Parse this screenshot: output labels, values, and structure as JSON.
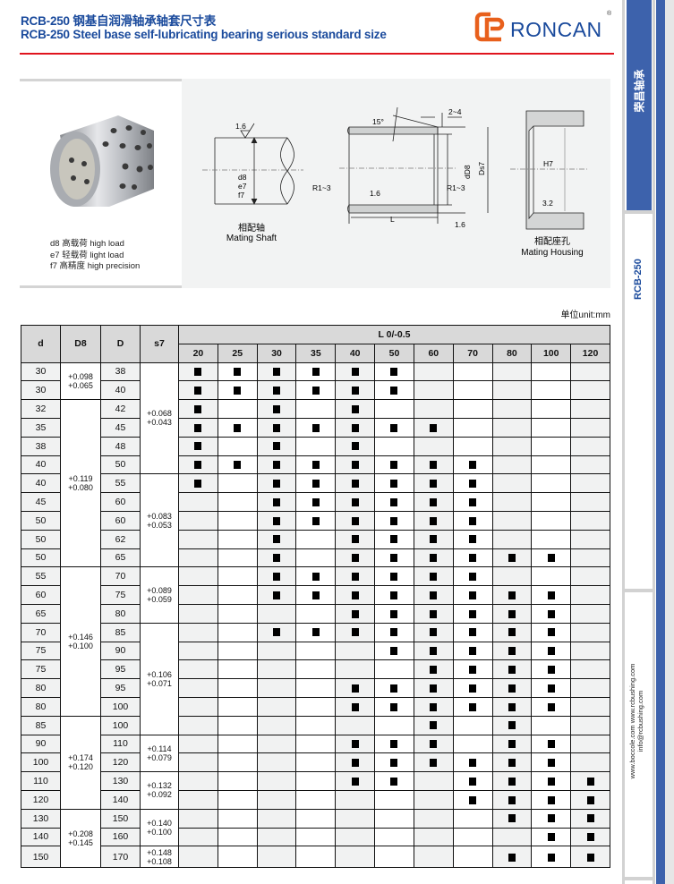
{
  "header": {
    "title_cn": "RCB-250 钢基自润滑轴承轴套尺寸表",
    "title_en": "RCB-250 Steel base self-lubricating bearing serious standard size",
    "logo_text": "RONCAN",
    "logo_reg": "®",
    "logo_color": "#e8601c",
    "brand_color": "#1a4a9c",
    "rule_color": "#e0141e"
  },
  "legend": [
    "d8  高载荷  high load",
    "e7  轻载荷  light load",
    "f7   高精度  high precision"
  ],
  "diagrams": {
    "shaft": {
      "rough": "1.6",
      "fits": [
        "d8",
        "e7",
        "f7"
      ],
      "label_cn": "相配轴",
      "label_en": "Mating Shaft"
    },
    "bushing": {
      "angle": "15°",
      "chamfer": "2~4",
      "radius_left": "R1~3",
      "radius_right": "R1~3",
      "rough_in": "1.6",
      "rough_out": "1.6",
      "length": "L",
      "inner": "dD8",
      "outer": "Ds7"
    },
    "housing": {
      "fit": "H7",
      "rough": "3.2",
      "label_cn": "相配座孔",
      "label_en": "Mating Housing"
    }
  },
  "unit": "单位unit:mm",
  "sidebar": {
    "brand_cn": "荣昌轴承",
    "model": "RCB-250",
    "web1": "www.boccole.com    www.rcbushing.com",
    "web2": "info@rcbushing.com"
  },
  "table": {
    "headers": {
      "d": "d",
      "D8": "D8",
      "D": "D",
      "s7": "s7",
      "L": "L 0/-0.5"
    },
    "lengths": [
      "20",
      "25",
      "30",
      "35",
      "40",
      "50",
      "60",
      "70",
      "80",
      "100",
      "120"
    ],
    "D8_groups": [
      {
        "rows": 2,
        "v": [
          "+0.098",
          "+0.065"
        ]
      },
      {
        "rows": 9,
        "v": [
          "+0.119",
          "+0.080"
        ]
      },
      {
        "rows": 8,
        "v": [
          "+0.146",
          "+0.100"
        ]
      },
      {
        "rows": 5,
        "v": [
          "+0.174",
          "+0.120"
        ]
      },
      {
        "rows": 3,
        "v": [
          "+0.208",
          "+0.145"
        ]
      }
    ],
    "s7_groups": [
      {
        "rows": 6,
        "v": [
          "+0.068",
          "+0.043"
        ]
      },
      {
        "rows": 5,
        "v": [
          "+0.083",
          "+0.053"
        ]
      },
      {
        "rows": 3,
        "v": [
          "+0.089",
          "+0.059"
        ]
      },
      {
        "rows": 6,
        "v": [
          "+0.106",
          "+0.071"
        ]
      },
      {
        "rows": 2,
        "v": [
          "+0.114",
          "+0.079"
        ]
      },
      {
        "rows": 2,
        "v": [
          "+0.132",
          "+0.092"
        ]
      },
      {
        "rows": 2,
        "v": [
          "+0.140",
          "+0.100"
        ]
      },
      {
        "rows": 1,
        "v": [
          "+0.148",
          "+0.108"
        ]
      }
    ],
    "rows": [
      {
        "d": "30",
        "D": "38",
        "avail": "11111100000"
      },
      {
        "d": "30",
        "D": "40",
        "avail": "11111100000"
      },
      {
        "d": "32",
        "D": "42",
        "avail": "10101000000"
      },
      {
        "d": "35",
        "D": "45",
        "avail": "11111110000"
      },
      {
        "d": "38",
        "D": "48",
        "avail": "10101000000"
      },
      {
        "d": "40",
        "D": "50",
        "avail": "11111111000"
      },
      {
        "d": "40",
        "D": "55",
        "avail": "10111111000"
      },
      {
        "d": "45",
        "D": "60",
        "avail": "00111111000"
      },
      {
        "d": "50",
        "D": "60",
        "avail": "00111111000"
      },
      {
        "d": "50",
        "D": "62",
        "avail": "00101111000"
      },
      {
        "d": "50",
        "D": "65",
        "avail": "00101111110"
      },
      {
        "d": "55",
        "D": "70",
        "avail": "00111111000"
      },
      {
        "d": "60",
        "D": "75",
        "avail": "00111111110"
      },
      {
        "d": "65",
        "D": "80",
        "avail": "00001111110"
      },
      {
        "d": "70",
        "D": "85",
        "avail": "00111111110"
      },
      {
        "d": "75",
        "D": "90",
        "avail": "00000111110"
      },
      {
        "d": "75",
        "D": "95",
        "avail": "00000011110"
      },
      {
        "d": "80",
        "D": "95",
        "avail": "00001111110"
      },
      {
        "d": "80",
        "D": "100",
        "avail": "00001111110"
      },
      {
        "d": "85",
        "D": "100",
        "avail": "00000010100"
      },
      {
        "d": "90",
        "D": "110",
        "avail": "00001110110"
      },
      {
        "d": "100",
        "D": "120",
        "avail": "00001111110"
      },
      {
        "d": "110",
        "D": "130",
        "avail": "00001101111"
      },
      {
        "d": "120",
        "D": "140",
        "avail": "00000001111"
      },
      {
        "d": "130",
        "D": "150",
        "avail": "00000000111"
      },
      {
        "d": "140",
        "D": "160",
        "avail": "00000000011"
      },
      {
        "d": "150",
        "D": "170",
        "avail": "00000000111"
      }
    ]
  }
}
